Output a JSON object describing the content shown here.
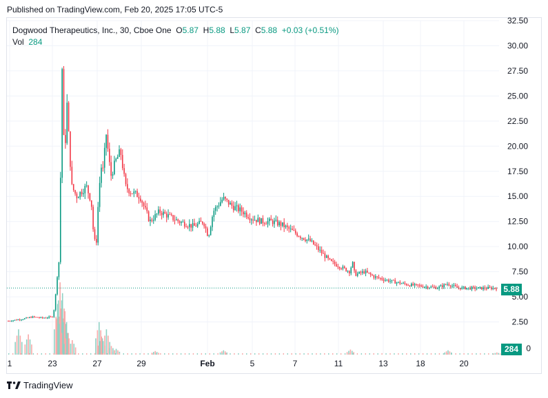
{
  "header": {
    "published": "Published on TradingView.com, Feb 20, 2025 17:05 UTC-5"
  },
  "legend": {
    "symbol": "Dogwood Therapeutics, Inc., 30, Cboe One",
    "o_label": "O",
    "o": "5.87",
    "h_label": "H",
    "h": "5.88",
    "l_label": "L",
    "l": "5.87",
    "c_label": "C",
    "c": "5.88",
    "change": "+0.03 (+0.51%)",
    "vol_label": "Vol",
    "vol": "284"
  },
  "brand": {
    "name": "TradingView"
  },
  "colors": {
    "up": "#089981",
    "down": "#f23645",
    "grid": "#f0f3fa",
    "axis_text": "#131722",
    "vol_up": "#8fd1c4",
    "vol_down": "#f7a9a8"
  },
  "chart_data": {
    "type": "candlestick",
    "title": "Dogwood Therapeutics, Inc., 30, Cboe One",
    "ylim": [
      0,
      32.5
    ],
    "y_ticks": [
      "32.50",
      "30.00",
      "27.50",
      "25.00",
      "22.50",
      "20.00",
      "17.50",
      "15.00",
      "12.50",
      "10.00",
      "7.50",
      "5.00",
      "2.50"
    ],
    "x_ticks": [
      "1",
      "23",
      "27",
      "29",
      "Feb",
      "5",
      "7",
      "11",
      "13",
      "18",
      "20"
    ],
    "last_price": "5.88",
    "last_volume": "284",
    "vol_axis_label": "0",
    "close_path": [
      [
        0,
        2.6
      ],
      [
        0.03,
        2.8
      ],
      [
        0.05,
        3.0
      ],
      [
        0.07,
        2.9
      ],
      [
        0.09,
        3.0
      ],
      [
        0.095,
        4.0
      ],
      [
        0.1,
        7.0
      ],
      [
        0.105,
        9.0
      ],
      [
        0.11,
        28.5
      ],
      [
        0.115,
        18.0
      ],
      [
        0.12,
        24.5
      ],
      [
        0.125,
        20.0
      ],
      [
        0.13,
        16.0
      ],
      [
        0.14,
        15.0
      ],
      [
        0.15,
        15.5
      ],
      [
        0.16,
        16.0
      ],
      [
        0.17,
        14.5
      ],
      [
        0.175,
        11.0
      ],
      [
        0.18,
        10.0
      ],
      [
        0.185,
        15.0
      ],
      [
        0.19,
        18.0
      ],
      [
        0.195,
        17.5
      ],
      [
        0.2,
        21.5
      ],
      [
        0.21,
        17.0
      ],
      [
        0.22,
        18.5
      ],
      [
        0.23,
        19.5
      ],
      [
        0.24,
        16.0
      ],
      [
        0.25,
        15.5
      ],
      [
        0.27,
        15.0
      ],
      [
        0.29,
        12.5
      ],
      [
        0.31,
        13.5
      ],
      [
        0.33,
        13.0
      ],
      [
        0.35,
        12.5
      ],
      [
        0.38,
        12.0
      ],
      [
        0.4,
        12.5
      ],
      [
        0.41,
        11.0
      ],
      [
        0.42,
        13.5
      ],
      [
        0.44,
        14.8
      ],
      [
        0.46,
        14.0
      ],
      [
        0.48,
        13.5
      ],
      [
        0.5,
        12.8
      ],
      [
        0.52,
        12.5
      ],
      [
        0.54,
        12.5
      ],
      [
        0.56,
        12.2
      ],
      [
        0.6,
        11.0
      ],
      [
        0.62,
        10.5
      ],
      [
        0.64,
        9.5
      ],
      [
        0.66,
        8.5
      ],
      [
        0.68,
        8.0
      ],
      [
        0.7,
        7.5
      ],
      [
        0.705,
        8.5
      ],
      [
        0.71,
        7.2
      ],
      [
        0.73,
        7.5
      ],
      [
        0.75,
        7.0
      ],
      [
        0.78,
        6.6
      ],
      [
        0.82,
        6.2
      ],
      [
        0.86,
        6.0
      ],
      [
        0.88,
        5.9
      ],
      [
        0.9,
        6.3
      ],
      [
        0.92,
        5.9
      ],
      [
        0.96,
        5.85
      ],
      [
        1.0,
        5.88
      ]
    ],
    "volume_spikes": [
      [
        0.02,
        0.35
      ],
      [
        0.04,
        0.28
      ],
      [
        0.1,
        0.7
      ],
      [
        0.105,
        1.0
      ],
      [
        0.11,
        0.85
      ],
      [
        0.115,
        0.6
      ],
      [
        0.12,
        0.3
      ],
      [
        0.13,
        0.2
      ],
      [
        0.185,
        0.45
      ],
      [
        0.19,
        0.25
      ],
      [
        0.2,
        0.35
      ],
      [
        0.21,
        0.12
      ],
      [
        0.22,
        0.08
      ],
      [
        0.3,
        0.05
      ],
      [
        0.44,
        0.06
      ],
      [
        0.7,
        0.07
      ],
      [
        0.9,
        0.06
      ],
      [
        1.0,
        0.03
      ]
    ]
  }
}
